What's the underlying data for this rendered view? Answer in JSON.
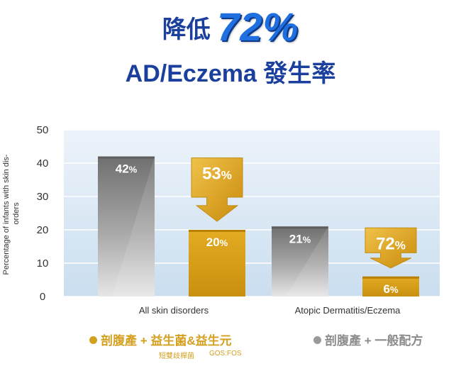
{
  "headline": {
    "line1_prefix": "降低",
    "line1_value": "72%",
    "line2_latin": "AD/Eczema",
    "line2_suffix": "發生率"
  },
  "legend": {
    "item1": "剖腹產 + 益生菌&益生元",
    "item1_note_a": "短雙歧桿菌",
    "item1_note_b": "GOS:FOS",
    "item2": "剖腹產 + 一般配方"
  },
  "colors": {
    "gray_bar": "#8a8a8a",
    "gold_bar": "#d9a21e",
    "plot_bg": "#d7e6f5",
    "title_blue": "#1b3f9c"
  },
  "chart_data": {
    "type": "bar",
    "categories": [
      "All skin disorders",
      "Atopic Dermatitis/Eczema"
    ],
    "series": [
      {
        "name": "剖腹產 + 一般配方",
        "values": [
          42,
          21
        ]
      },
      {
        "name": "剖腹產 + 益生菌&益生元",
        "values": [
          20,
          6
        ]
      }
    ],
    "bar_labels": [
      [
        "42%",
        "21%"
      ],
      [
        "20%",
        "6%"
      ]
    ],
    "reduction_labels": [
      "53%",
      "72%"
    ],
    "ylabel": "Percentage of infants with skin dis-orders",
    "ylabel_lines": [
      "Percentage of infants with skin dis-",
      "orders"
    ],
    "yticks": [
      0,
      10,
      20,
      30,
      40,
      50
    ],
    "ylim": [
      0,
      50
    ],
    "grid": true,
    "legend_position": "bottom"
  }
}
